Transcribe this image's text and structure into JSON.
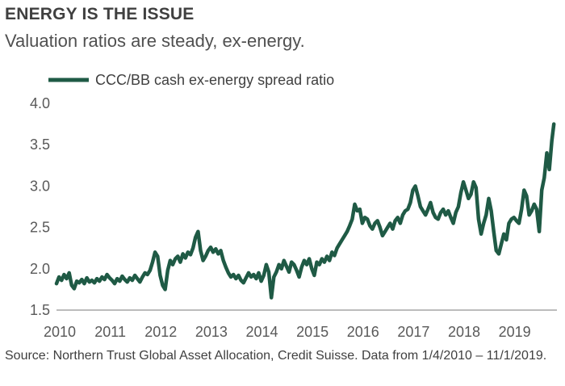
{
  "title": "ENERGY IS THE ISSUE",
  "subtitle": "Valuation ratios are steady, ex-energy.",
  "source": "Source: Northern Trust Global Asset Allocation, Credit Suisse. Data from 1/4/2010 – 11/1/2019.",
  "colors": {
    "series": "#1f5a45",
    "axis": "#a6a6a6",
    "text": "#595959"
  },
  "chart_data": {
    "type": "line",
    "title": "ENERGY IS THE ISSUE",
    "subtitle": "Valuation ratios are steady, ex-energy.",
    "xlabel": "",
    "ylabel": "",
    "xlim": [
      2010.0,
      2019.9
    ],
    "ylim": [
      1.5,
      4.0
    ],
    "grid": false,
    "legend_position": "top-left",
    "x_ticks": [
      2010,
      2011,
      2012,
      2013,
      2014,
      2015,
      2016,
      2017,
      2018,
      2019
    ],
    "y_ticks": [
      1.5,
      2.0,
      2.5,
      3.0,
      3.5,
      4.0
    ],
    "x_tick_labels": [
      "2010",
      "2011",
      "2012",
      "2013",
      "2014",
      "2015",
      "2016",
      "2017",
      "2018",
      "2019"
    ],
    "y_tick_labels": [
      "1.5",
      "2.0",
      "2.5",
      "3.0",
      "3.5",
      "4.0"
    ],
    "series": [
      {
        "name": "CCC/BB cash ex-energy spread ratio",
        "color": "#1f5a45",
        "x": [
          2010.0,
          2010.05,
          2010.1,
          2010.15,
          2010.2,
          2010.25,
          2010.3,
          2010.35,
          2010.4,
          2010.45,
          2010.5,
          2010.55,
          2010.6,
          2010.65,
          2010.7,
          2010.75,
          2010.8,
          2010.85,
          2010.9,
          2010.95,
          2011.0,
          2011.05,
          2011.1,
          2011.15,
          2011.2,
          2011.25,
          2011.3,
          2011.35,
          2011.4,
          2011.45,
          2011.5,
          2011.55,
          2011.6,
          2011.65,
          2011.7,
          2011.75,
          2011.8,
          2011.85,
          2011.9,
          2011.95,
          2012.0,
          2012.05,
          2012.1,
          2012.15,
          2012.2,
          2012.25,
          2012.3,
          2012.35,
          2012.4,
          2012.45,
          2012.5,
          2012.55,
          2012.6,
          2012.65,
          2012.7,
          2012.75,
          2012.8,
          2012.85,
          2012.9,
          2012.95,
          2013.0,
          2013.05,
          2013.1,
          2013.15,
          2013.2,
          2013.25,
          2013.3,
          2013.35,
          2013.4,
          2013.45,
          2013.5,
          2013.55,
          2013.6,
          2013.65,
          2013.7,
          2013.75,
          2013.8,
          2013.85,
          2013.9,
          2013.95,
          2014.0,
          2014.05,
          2014.1,
          2014.15,
          2014.2,
          2014.25,
          2014.3,
          2014.35,
          2014.4,
          2014.45,
          2014.5,
          2014.55,
          2014.6,
          2014.65,
          2014.7,
          2014.75,
          2014.8,
          2014.85,
          2014.9,
          2014.95,
          2015.0,
          2015.05,
          2015.1,
          2015.15,
          2015.2,
          2015.25,
          2015.3,
          2015.35,
          2015.4,
          2015.45,
          2015.5,
          2015.55,
          2015.6,
          2015.65,
          2015.7,
          2015.75,
          2015.8,
          2015.85,
          2015.9,
          2015.95,
          2016.0,
          2016.05,
          2016.1,
          2016.15,
          2016.2,
          2016.25,
          2016.3,
          2016.35,
          2016.4,
          2016.45,
          2016.5,
          2016.55,
          2016.6,
          2016.65,
          2016.7,
          2016.75,
          2016.8,
          2016.85,
          2016.9,
          2016.95,
          2017.0,
          2017.05,
          2017.1,
          2017.15,
          2017.2,
          2017.25,
          2017.3,
          2017.35,
          2017.4,
          2017.45,
          2017.5,
          2017.55,
          2017.6,
          2017.65,
          2017.7,
          2017.75,
          2017.8,
          2017.85,
          2017.9,
          2017.95,
          2018.0,
          2018.05,
          2018.1,
          2018.15,
          2018.2,
          2018.25,
          2018.3,
          2018.35,
          2018.4,
          2018.45,
          2018.5,
          2018.55,
          2018.6,
          2018.65,
          2018.7,
          2018.75,
          2018.8,
          2018.85,
          2018.9,
          2018.95,
          2019.0,
          2019.05,
          2019.1,
          2019.15,
          2019.2,
          2019.25,
          2019.3,
          2019.35,
          2019.4,
          2019.45,
          2019.5,
          2019.55,
          2019.6,
          2019.65,
          2019.7,
          2019.75,
          2019.8,
          2019.84
        ],
        "values": [
          1.82,
          1.9,
          1.86,
          1.93,
          1.88,
          1.95,
          1.8,
          1.76,
          1.85,
          1.83,
          1.87,
          1.82,
          1.89,
          1.84,
          1.86,
          1.83,
          1.88,
          1.85,
          1.9,
          1.87,
          1.93,
          1.89,
          1.86,
          1.82,
          1.88,
          1.85,
          1.91,
          1.87,
          1.84,
          1.89,
          1.86,
          1.92,
          1.88,
          1.84,
          1.9,
          1.95,
          1.93,
          1.98,
          2.08,
          2.2,
          2.15,
          1.92,
          1.8,
          1.75,
          1.98,
          2.1,
          2.05,
          2.12,
          2.15,
          2.08,
          2.18,
          2.13,
          2.2,
          2.17,
          2.25,
          2.38,
          2.45,
          2.22,
          2.1,
          2.15,
          2.22,
          2.26,
          2.2,
          2.24,
          2.18,
          2.22,
          2.1,
          2.02,
          1.95,
          1.9,
          1.93,
          1.88,
          1.92,
          1.86,
          1.83,
          1.89,
          1.95,
          1.9,
          1.93,
          1.88,
          1.95,
          1.85,
          1.92,
          2.05,
          1.96,
          1.65,
          1.9,
          1.96,
          2.05,
          2.0,
          2.1,
          2.03,
          1.96,
          2.08,
          2.05,
          1.98,
          1.9,
          2.02,
          2.1,
          2.05,
          2.12,
          2.0,
          1.92,
          2.08,
          2.05,
          2.12,
          2.08,
          2.15,
          2.1,
          2.2,
          2.16,
          2.25,
          2.3,
          2.35,
          2.4,
          2.45,
          2.52,
          2.6,
          2.78,
          2.7,
          2.72,
          2.55,
          2.62,
          2.6,
          2.52,
          2.48,
          2.55,
          2.58,
          2.5,
          2.4,
          2.45,
          2.5,
          2.55,
          2.48,
          2.58,
          2.62,
          2.55,
          2.65,
          2.7,
          2.72,
          2.8,
          2.95,
          3.0,
          2.88,
          2.75,
          2.7,
          2.65,
          2.72,
          2.8,
          2.68,
          2.62,
          2.6,
          2.68,
          2.72,
          2.65,
          2.7,
          2.62,
          2.55,
          2.68,
          2.75,
          2.92,
          3.05,
          2.95,
          2.85,
          2.9,
          3.05,
          2.98,
          2.6,
          2.42,
          2.55,
          2.65,
          2.85,
          2.7,
          2.45,
          2.22,
          2.18,
          2.3,
          2.42,
          2.35,
          2.55,
          2.6,
          2.62,
          2.58,
          2.55,
          2.72,
          2.95,
          2.88,
          2.65,
          2.7,
          2.78,
          2.72,
          2.45,
          2.95,
          3.1,
          3.4,
          3.2,
          3.55,
          3.75
        ]
      }
    ]
  }
}
